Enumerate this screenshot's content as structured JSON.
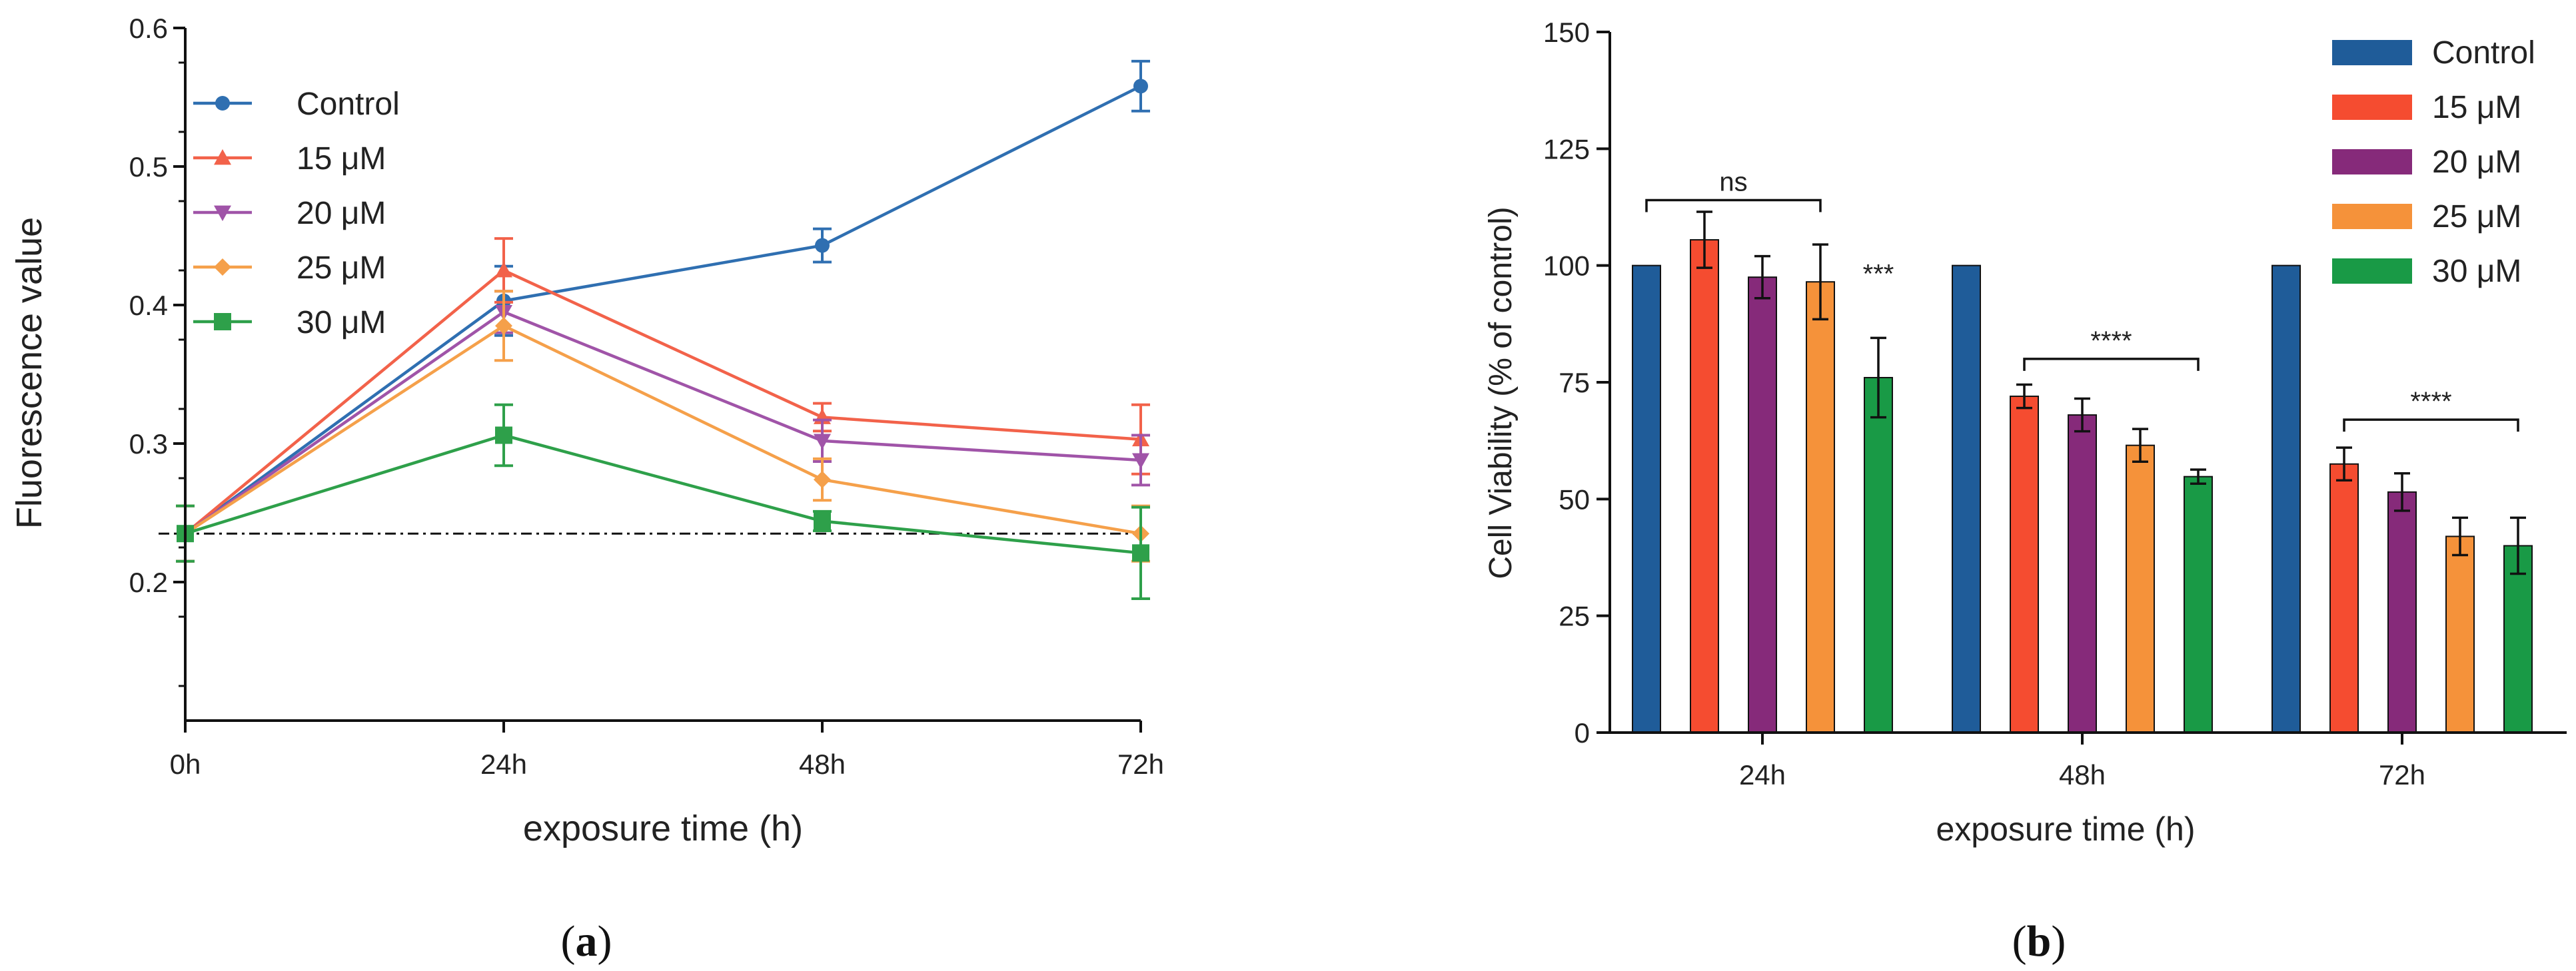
{
  "chart_data": [
    {
      "panel_label": "a",
      "type": "line",
      "xlabel": "exposure time (h)",
      "ylabel": "Fluorescence value",
      "categories": [
        "0h",
        "24h",
        "48h",
        "72h"
      ],
      "ylim": [
        0.1,
        0.6
      ],
      "yticks": [
        "0.2",
        "0.3",
        "0.4",
        "0.5",
        "0.6"
      ],
      "baseline": 0.235,
      "series": [
        {
          "name": "Control",
          "color": "#2f6fb1",
          "marker": "circle",
          "values": [
            0.235,
            0.403,
            0.443,
            0.558
          ],
          "errors": [
            0.02,
            0.025,
            0.012,
            0.018
          ]
        },
        {
          "name": "15 μM",
          "color": "#f2624a",
          "marker": "triangle-up",
          "values": [
            0.235,
            0.425,
            0.319,
            0.303
          ],
          "errors": [
            0.02,
            0.023,
            0.01,
            0.025
          ]
        },
        {
          "name": "20 μM",
          "color": "#a054a8",
          "marker": "triangle-down",
          "values": [
            0.235,
            0.395,
            0.302,
            0.288
          ],
          "errors": [
            0.02,
            0.015,
            0.015,
            0.018
          ]
        },
        {
          "name": "25 μM",
          "color": "#f5a04a",
          "marker": "diamond",
          "values": [
            0.235,
            0.385,
            0.274,
            0.235
          ],
          "errors": [
            0.02,
            0.025,
            0.015,
            0.02
          ]
        },
        {
          "name": "30 μM",
          "color": "#2ea04a",
          "marker": "square",
          "values": [
            0.235,
            0.306,
            0.244,
            0.221
          ],
          "errors": [
            0.02,
            0.022,
            0.007,
            0.033
          ]
        }
      ]
    },
    {
      "panel_label": "b",
      "type": "bar",
      "xlabel": "exposure time (h)",
      "ylabel": "Cell Viability (% of control)",
      "categories": [
        "24h",
        "48h",
        "72h"
      ],
      "ylim": [
        0,
        150
      ],
      "yticks": [
        "0",
        "25",
        "50",
        "75",
        "100",
        "125",
        "150"
      ],
      "series": [
        {
          "name": "Control",
          "color": "#1f5c99",
          "values": [
            100,
            100,
            100
          ],
          "errors": [
            0,
            0,
            0
          ]
        },
        {
          "name": "15 μM",
          "color": "#f54c30",
          "values": [
            105.5,
            72,
            57.5
          ],
          "errors": [
            6,
            2.5,
            3.5
          ]
        },
        {
          "name": "20 μM",
          "color": "#862a7a",
          "values": [
            97.5,
            68,
            51.5
          ],
          "errors": [
            4.5,
            3.5,
            4
          ]
        },
        {
          "name": "25 μM",
          "color": "#f5923a",
          "values": [
            96.5,
            61.5,
            42
          ],
          "errors": [
            8,
            3.5,
            4
          ]
        },
        {
          "name": "30 μM",
          "color": "#199a46",
          "values": [
            76,
            54.8,
            40
          ],
          "errors": [
            8.5,
            1.5,
            6
          ]
        }
      ],
      "annotations": [
        {
          "text": "ns",
          "type": "bracket",
          "category": 0,
          "from_series": 0,
          "to_series": 3,
          "y": 114
        },
        {
          "text": "***",
          "type": "label",
          "category": 0,
          "series": 4,
          "y": 98
        },
        {
          "text": "****",
          "type": "bracket",
          "category": 1,
          "from_series": 1,
          "to_series": 4,
          "y": 80
        },
        {
          "text": "****",
          "type": "bracket",
          "category": 2,
          "from_series": 1,
          "to_series": 4,
          "y": 67
        }
      ]
    }
  ]
}
